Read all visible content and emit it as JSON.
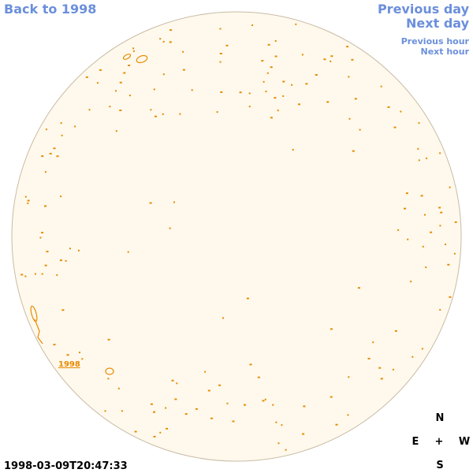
{
  "nav": {
    "back": "Back to 1998",
    "previous_day": "Previous day",
    "next_day": "Next day",
    "previous_hour": "Previous hour",
    "next_hour": "Next hour"
  },
  "region_label": "1998",
  "timestamp": "1998-03-09T20:47:33",
  "compass": {
    "north": "N",
    "east": "E",
    "center": "+",
    "west": "W",
    "south": "S"
  }
}
